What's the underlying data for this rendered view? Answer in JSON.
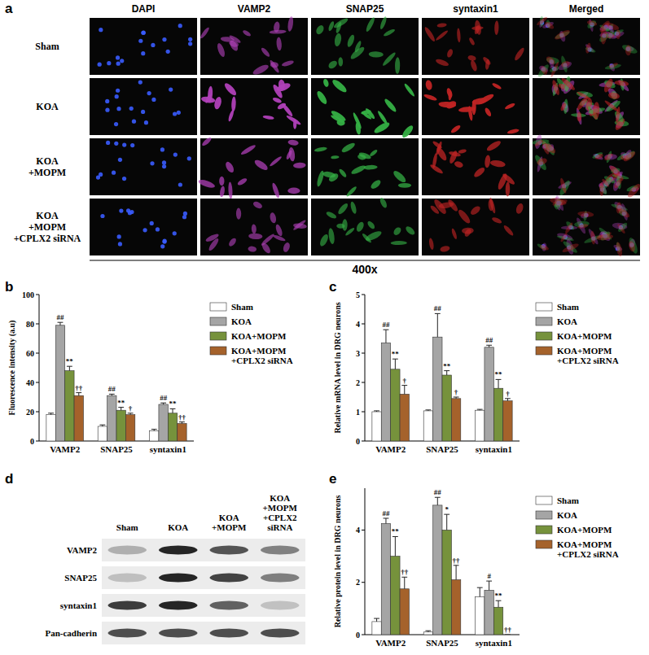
{
  "figure": {
    "panel_a": {
      "label": "a",
      "columns": [
        "DAPI",
        "VAMP2",
        "SNAP25",
        "syntaxin1",
        "Merged"
      ],
      "rows": [
        "Sham",
        "KOA",
        "KOA +MOPM",
        "KOA +MOPM +CPLX2 siRNA"
      ],
      "magnification": "400x"
    },
    "panel_d": {
      "label": "d",
      "lanes": [
        "Sham",
        "KOA",
        "KOA +MOPM",
        "KOA +MOPM +CPLX2 siRNA"
      ],
      "rows": [
        "VAMP2",
        "SNAP25",
        "syntaxin1",
        "Pan-cadherin"
      ]
    }
  },
  "chart_data": [
    {
      "panel_label": "b",
      "type": "bar",
      "y_label": "Fluorescence intensity (a.u)",
      "categories": [
        "VAMP2",
        "SNAP25",
        "syntaxin1"
      ],
      "ylim": [
        0,
        100
      ],
      "yticks": [
        0,
        20,
        40,
        60,
        80,
        100
      ],
      "legend": "right",
      "series": [
        {
          "name": "Sham",
          "color": "#ffffff",
          "values": [
            18,
            10,
            7
          ],
          "errors": [
            1,
            1,
            1
          ],
          "annotations": [
            null,
            null,
            null
          ]
        },
        {
          "name": "KOA",
          "color": "#a5a5a5",
          "values": [
            79,
            31,
            25
          ],
          "errors": [
            2,
            1,
            1
          ],
          "annotations": [
            "##",
            "##",
            "##"
          ]
        },
        {
          "name": "KOA+MOPM",
          "color": "#76923c",
          "values": [
            48,
            21,
            19
          ],
          "errors": [
            3,
            2,
            3
          ],
          "annotations": [
            "**",
            "**",
            "**"
          ]
        },
        {
          "name": "KOA+MOPM +CPLX2 siRNA",
          "color": "#a5622b",
          "values": [
            31,
            18,
            12
          ],
          "errors": [
            2,
            1,
            1
          ],
          "annotations": [
            "††",
            "†",
            "††"
          ]
        }
      ]
    },
    {
      "panel_label": "c",
      "type": "bar",
      "y_label": "Relative mRNA level in DRG neurons",
      "categories": [
        "VAMP2",
        "SNAP25",
        "syntaxin1"
      ],
      "ylim": [
        0,
        5
      ],
      "yticks": [
        0,
        1,
        2,
        3,
        4,
        5
      ],
      "legend": "right",
      "series": [
        {
          "name": "Sham",
          "color": "#ffffff",
          "values": [
            1.0,
            1.03,
            1.05
          ],
          "errors": [
            0.03,
            0.03,
            0.03
          ],
          "annotations": [
            null,
            null,
            null
          ]
        },
        {
          "name": "KOA",
          "color": "#a5a5a5",
          "values": [
            3.35,
            3.55,
            3.2
          ],
          "errors": [
            0.45,
            0.8,
            0.07
          ],
          "annotations": [
            "##",
            "##",
            "##"
          ]
        },
        {
          "name": "KOA+MOPM",
          "color": "#76923c",
          "values": [
            2.45,
            2.25,
            1.8
          ],
          "errors": [
            0.35,
            0.15,
            0.3
          ],
          "annotations": [
            "**",
            "**",
            "**"
          ]
        },
        {
          "name": "KOA+MOPM +CPLX2 siRNA",
          "color": "#a5622b",
          "values": [
            1.6,
            1.45,
            1.37
          ],
          "errors": [
            0.3,
            0.05,
            0.08
          ],
          "annotations": [
            "†",
            "†",
            "†"
          ]
        }
      ]
    },
    {
      "panel_label": "e",
      "type": "bar",
      "y_label": "Relative protein level in DRG neurons",
      "categories": [
        "VAMP2",
        "SNAP25",
        "syntaxin1"
      ],
      "ylim": [
        0,
        5.6
      ],
      "yticks": [
        0,
        2,
        4
      ],
      "legend": "right",
      "series": [
        {
          "name": "Sham",
          "color": "#ffffff",
          "values": [
            0.5,
            0.1,
            1.45
          ],
          "errors": [
            0.12,
            0.05,
            0.35
          ],
          "annotations": [
            null,
            null,
            null
          ]
        },
        {
          "name": "KOA",
          "color": "#a5a5a5",
          "values": [
            4.25,
            4.95,
            1.7
          ],
          "errors": [
            0.2,
            0.3,
            0.35
          ],
          "annotations": [
            "##",
            "##",
            "#"
          ]
        },
        {
          "name": "KOA+MOPM",
          "color": "#76923c",
          "values": [
            3.0,
            4.0,
            1.05
          ],
          "errors": [
            0.75,
            0.6,
            0.25
          ],
          "annotations": [
            "**",
            "*",
            "**"
          ]
        },
        {
          "name": "KOA+MOPM +CPLX2 siRNA",
          "color": "#a5622b",
          "values": [
            1.75,
            2.1,
            0
          ],
          "errors": [
            0.45,
            0.55,
            0
          ],
          "annotations": [
            "††",
            "††",
            "††"
          ]
        }
      ]
    }
  ]
}
